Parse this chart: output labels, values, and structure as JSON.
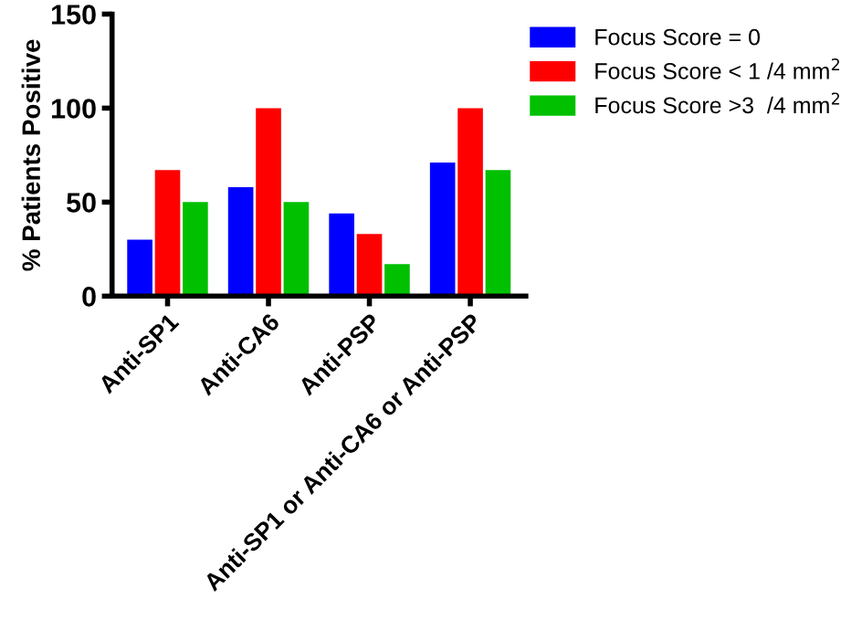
{
  "chart_data": {
    "type": "bar",
    "ylabel": "% Patients Positive",
    "categories": [
      "Anti-SP1",
      "Anti-CA6",
      "Anti-PSP",
      "Anti-SP1 or Anti-CA6 or Anti-PSP"
    ],
    "series": [
      {
        "name": "Focus Score = 0",
        "color": "#0000ff",
        "values": [
          30,
          58,
          44,
          71
        ]
      },
      {
        "name": "Focus Score < 1 /4 mm$^{2}$",
        "color": "#ff0000",
        "values": [
          67,
          100,
          33,
          100
        ]
      },
      {
        "name": "Focus Score >3  /4 mm$^{2}$",
        "color": "#00c000",
        "values": [
          50,
          50,
          17,
          67
        ]
      }
    ],
    "ylim": [
      0,
      150
    ],
    "yticks": [
      0,
      50,
      100,
      150
    ],
    "grid": false,
    "legend": "top right"
  }
}
